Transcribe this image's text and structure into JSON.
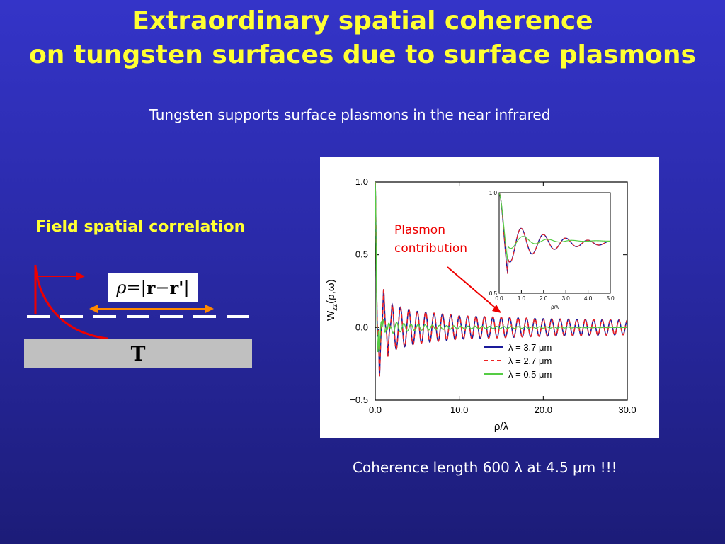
{
  "slide": {
    "title_line1": "Extraordinary spatial coherence",
    "title_line2": "on tungsten surfaces due to surface plasmons",
    "subtitle": "Tungsten supports surface plasmons in the near infrared",
    "field_heading": "Field spatial correlation",
    "formula": {
      "rho": "ρ",
      "eq": " = ",
      "bar_left": "|",
      "r": "r",
      "minus": " − ",
      "r_prime": "r'",
      "bar_right": "|"
    },
    "substrate_label": "T",
    "caption": "Coherence length 600 λ at 4.5 μm !!!"
  },
  "plot": {
    "plasmon_label_line1": "Plasmon",
    "plasmon_label_line2": "contribution",
    "ylabel_main": "W",
    "ylabel_sub": "zz",
    "ylabel_args": "(ρ,ω)",
    "xlabel": "ρ/λ",
    "inset_xlabel": "ρ/λ",
    "colors": {
      "blue": "#1a1a9a",
      "red": "#ee2222",
      "green": "#55cc44",
      "arrow": "#ee0000",
      "orange": "#ff8800"
    }
  },
  "chart_data": [
    {
      "type": "line",
      "xlabel": "ρ/λ",
      "ylabel": "Wzz(ρ,ω)",
      "xlim": [
        0,
        30
      ],
      "ylim": [
        -0.5,
        1.0
      ],
      "x_ticks": [
        "0.0",
        "10.0",
        "20.0",
        "30.0"
      ],
      "y_ticks": [
        "-0.5",
        "0.0",
        "0.5",
        "1.0"
      ],
      "legend_position": "bottom-center",
      "series": [
        {
          "name": "λ = 3.7 μm",
          "style": "solid",
          "color": "#1a1a9a",
          "x": [
            0,
            0.5,
            1.0,
            1.5,
            2.0,
            3.0,
            5.0,
            10.0,
            20.0,
            30.0
          ],
          "y": [
            1.0,
            -0.35,
            0.27,
            -0.2,
            0.16,
            0.14,
            0.11,
            0.08,
            0.06,
            0.05
          ]
        },
        {
          "name": "λ = 2.7 μm",
          "style": "dashed",
          "color": "#ee2222",
          "x": [
            0,
            0.5,
            1.0,
            1.5,
            2.0,
            3.0,
            5.0,
            10.0,
            20.0,
            30.0
          ],
          "y": [
            1.0,
            -0.35,
            0.27,
            -0.2,
            0.16,
            0.14,
            0.11,
            0.08,
            0.06,
            0.05
          ]
        },
        {
          "name": "λ = 0.5 μm",
          "style": "solid",
          "color": "#55cc44",
          "x": [
            0,
            0.5,
            1.0,
            1.5,
            2.0,
            3.0,
            5.0,
            10.0,
            20.0,
            30.0
          ],
          "y": [
            1.0,
            -0.2,
            0.1,
            -0.06,
            0.04,
            0.03,
            0.02,
            0.01,
            0.005,
            0.0
          ]
        }
      ]
    },
    {
      "type": "line",
      "title": "",
      "xlabel": "ρ/λ",
      "xlim": [
        0,
        5
      ],
      "ylim": [
        0.5,
        1.0
      ],
      "x_ticks": [
        "0.0",
        "1.0",
        "2.0",
        "3.0",
        "4.0",
        "5.0"
      ],
      "y_ticks": [
        "0.5",
        "1.0"
      ]
    }
  ]
}
